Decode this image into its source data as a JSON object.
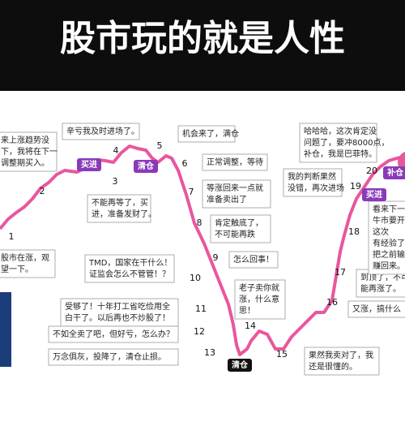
{
  "header": {
    "title": "股市玩的就是人性"
  },
  "steps": [
    "1",
    "2",
    "3",
    "4",
    "5",
    "6",
    "7",
    "8",
    "9",
    "10",
    "11",
    "12",
    "13",
    "14",
    "15",
    "16",
    "17",
    "18",
    "19",
    "20"
  ],
  "tags": [
    "买进",
    "清仓",
    "清仓",
    "买进",
    "补仓"
  ],
  "notes": [
    [
      "来上涨趋势没",
      "下，我将在下一",
      "调整期买入。"
    ],
    [
      "辛亏我及时进场了。"
    ],
    [
      "机会来了，满仓"
    ],
    [
      "正常调整，等待"
    ],
    [
      "等涨回来一点就",
      "准备卖出了"
    ],
    [
      "肯定触底了，",
      "不可能再跌"
    ],
    [
      "怎么回事！"
    ],
    [
      "TMD，国家在干什么！",
      "证监会怎么不管管！？"
    ],
    [
      "老子卖你就",
      "涨，什么意",
      "思！"
    ],
    [
      "受够了！十年打工省吃俭用全",
      "白干了。以后再也不炒股了！"
    ],
    [
      "不如全卖了吧，但好亏，怎么办？"
    ],
    [
      "万念俱灰，投降了，清仓止损。"
    ],
    [
      "果然我卖对了，我",
      "还是很懂的。"
    ],
    [
      "又涨，搞什么"
    ],
    [
      "到顶了，不可",
      "能再涨了。"
    ],
    [
      "看来下一",
      "牛市要开",
      "这次",
      "有经验了",
      "把之前输",
      "赚回来。"
    ],
    [
      "我的判断果然",
      "没错，再次进场"
    ],
    [
      "哈哈哈，这次肯定没",
      "问题了，要冲8000点，",
      "补仓，我是巴菲特。"
    ],
    [
      "不能再等了，买",
      "进，准备发财了。"
    ],
    [
      "股市在涨，观",
      "望一下。"
    ]
  ]
}
